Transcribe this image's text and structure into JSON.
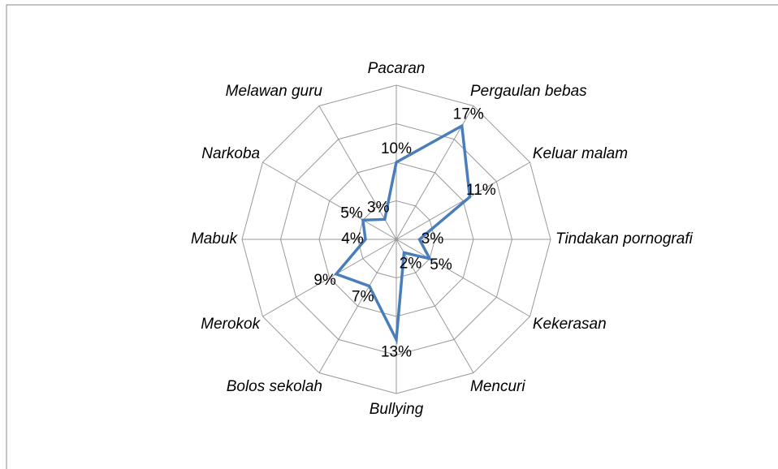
{
  "chart_data": {
    "type": "radar",
    "categories": [
      "Pacaran",
      "Pergaulan bebas",
      "Keluar malam",
      "Tindakan pornografi",
      "Kekerasan",
      "Mencuri",
      "Bullying",
      "Bolos sekolah",
      "Merokok",
      "Mabuk",
      "Narkoba",
      "Melawan guru"
    ],
    "values": [
      10,
      17,
      11,
      3,
      5,
      2,
      13,
      7,
      9,
      4,
      5,
      3
    ],
    "value_labels": [
      "10%",
      "17%",
      "11%",
      "3%",
      "5%",
      "2%",
      "13%",
      "7%",
      "9%",
      "4%",
      "5%",
      "3%"
    ],
    "color": "#4a7ebb",
    "ylim": [
      0,
      20
    ],
    "yticks": [
      5,
      10,
      15,
      20
    ],
    "grid": true
  }
}
